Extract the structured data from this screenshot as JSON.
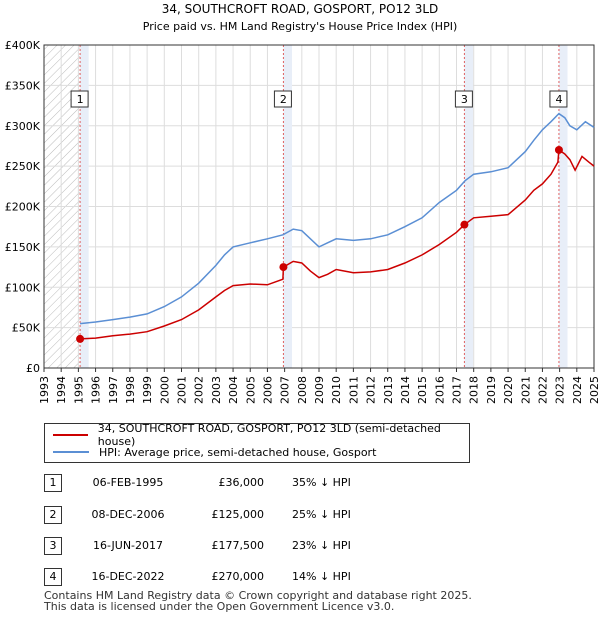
{
  "chart_data": {
    "type": "line",
    "title": "34, SOUTHCROFT ROAD, GOSPORT, PO12 3LD",
    "subtitle": "Price paid vs. HM Land Registry's House Price Index (HPI)",
    "xlabel": "",
    "ylabel": "",
    "xlim": [
      1993,
      2025
    ],
    "ylim": [
      0,
      400000
    ],
    "x_ticks": [
      "1993",
      "1994",
      "1995",
      "1996",
      "1997",
      "1998",
      "1999",
      "2000",
      "2001",
      "2002",
      "2003",
      "2004",
      "2005",
      "2006",
      "2007",
      "2008",
      "2009",
      "2010",
      "2011",
      "2012",
      "2013",
      "2014",
      "2015",
      "2016",
      "2017",
      "2018",
      "2019",
      "2020",
      "2021",
      "2022",
      "2023",
      "2024",
      "2025"
    ],
    "y_ticks": [
      {
        "value": 0,
        "label": "£0"
      },
      {
        "value": 50000,
        "label": "£50K"
      },
      {
        "value": 100000,
        "label": "£100K"
      },
      {
        "value": 150000,
        "label": "£150K"
      },
      {
        "value": 200000,
        "label": "£200K"
      },
      {
        "value": 250000,
        "label": "£250K"
      },
      {
        "value": 300000,
        "label": "£300K"
      },
      {
        "value": 350000,
        "label": "£350K"
      },
      {
        "value": 400000,
        "label": "£400K"
      }
    ],
    "grid": true,
    "series": [
      {
        "name": "34, SOUTHCROFT ROAD, GOSPORT, PO12 3LD (semi-detached house)",
        "color": "#cc0000",
        "points": [
          [
            1995.1,
            36000
          ],
          [
            1996.0,
            37000
          ],
          [
            1997.0,
            40000
          ],
          [
            1998.0,
            42000
          ],
          [
            1999.0,
            45000
          ],
          [
            2000.0,
            52000
          ],
          [
            2001.0,
            60000
          ],
          [
            2002.0,
            72000
          ],
          [
            2003.0,
            88000
          ],
          [
            2003.5,
            96000
          ],
          [
            2004.0,
            102000
          ],
          [
            2005.0,
            104000
          ],
          [
            2006.0,
            103000
          ],
          [
            2006.9,
            110000
          ],
          [
            2006.93,
            125000
          ],
          [
            2007.5,
            132000
          ],
          [
            2008.0,
            130000
          ],
          [
            2008.5,
            120000
          ],
          [
            2009.0,
            112000
          ],
          [
            2009.5,
            116000
          ],
          [
            2010.0,
            122000
          ],
          [
            2010.5,
            120000
          ],
          [
            2011.0,
            118000
          ],
          [
            2012.0,
            119000
          ],
          [
            2013.0,
            122000
          ],
          [
            2014.0,
            130000
          ],
          [
            2015.0,
            140000
          ],
          [
            2016.0,
            153000
          ],
          [
            2017.0,
            168000
          ],
          [
            2017.46,
            177500
          ],
          [
            2018.0,
            186000
          ],
          [
            2019.0,
            188000
          ],
          [
            2020.0,
            190000
          ],
          [
            2021.0,
            208000
          ],
          [
            2021.5,
            220000
          ],
          [
            2022.0,
            228000
          ],
          [
            2022.5,
            240000
          ],
          [
            2022.9,
            255000
          ],
          [
            2022.96,
            270000
          ],
          [
            2023.3,
            265000
          ],
          [
            2023.6,
            258000
          ],
          [
            2023.9,
            245000
          ],
          [
            2024.3,
            262000
          ],
          [
            2024.7,
            255000
          ],
          [
            2025.0,
            250000
          ]
        ]
      },
      {
        "name": "HPI: Average price, semi-detached house, Gosport",
        "color": "#5b8fd4",
        "points": [
          [
            1995.1,
            55000
          ],
          [
            1996.0,
            57000
          ],
          [
            1997.0,
            60000
          ],
          [
            1998.0,
            63000
          ],
          [
            1999.0,
            67000
          ],
          [
            2000.0,
            76000
          ],
          [
            2001.0,
            88000
          ],
          [
            2002.0,
            105000
          ],
          [
            2003.0,
            127000
          ],
          [
            2003.5,
            140000
          ],
          [
            2004.0,
            150000
          ],
          [
            2005.0,
            155000
          ],
          [
            2006.0,
            160000
          ],
          [
            2006.9,
            165000
          ],
          [
            2007.5,
            172000
          ],
          [
            2008.0,
            170000
          ],
          [
            2008.5,
            160000
          ],
          [
            2009.0,
            150000
          ],
          [
            2009.5,
            155000
          ],
          [
            2010.0,
            160000
          ],
          [
            2011.0,
            158000
          ],
          [
            2012.0,
            160000
          ],
          [
            2013.0,
            165000
          ],
          [
            2014.0,
            175000
          ],
          [
            2015.0,
            186000
          ],
          [
            2016.0,
            205000
          ],
          [
            2017.0,
            220000
          ],
          [
            2017.5,
            232000
          ],
          [
            2018.0,
            240000
          ],
          [
            2019.0,
            243000
          ],
          [
            2020.0,
            248000
          ],
          [
            2021.0,
            268000
          ],
          [
            2021.5,
            282000
          ],
          [
            2022.0,
            295000
          ],
          [
            2022.5,
            305000
          ],
          [
            2022.96,
            315000
          ],
          [
            2023.3,
            310000
          ],
          [
            2023.6,
            300000
          ],
          [
            2024.0,
            295000
          ],
          [
            2024.5,
            305000
          ],
          [
            2025.0,
            298000
          ]
        ]
      }
    ],
    "sales": [
      {
        "num": "1",
        "year": 1995.1,
        "price": 36000,
        "date": "06-FEB-1995",
        "price_label": "£36,000",
        "hpi_label": "35% ↓ HPI"
      },
      {
        "num": "2",
        "year": 2006.93,
        "price": 125000,
        "date": "08-DEC-2006",
        "price_label": "£125,000",
        "hpi_label": "25% ↓ HPI"
      },
      {
        "num": "3",
        "year": 2017.46,
        "price": 177500,
        "date": "16-JUN-2017",
        "price_label": "£177,500",
        "hpi_label": "23% ↓ HPI"
      },
      {
        "num": "4",
        "year": 2022.96,
        "price": 270000,
        "date": "16-DEC-2022",
        "price_label": "£270,000",
        "hpi_label": "14% ↓ HPI"
      }
    ],
    "hatch_before": 1995.1,
    "hatch_after": 2025
  },
  "legend": {
    "property_label": "34, SOUTHCROFT ROAD, GOSPORT, PO12 3LD (semi-detached house)",
    "hpi_label": "HPI: Average price, semi-detached house, Gosport"
  },
  "footer": {
    "line1": "Contains HM Land Registry data © Crown copyright and database right 2025.",
    "line2": "This data is licensed under the Open Government Licence v3.0."
  },
  "colors": {
    "property": "#cc0000",
    "hpi": "#5b8fd4",
    "sale_band": "#e8eef8",
    "grid": "#dddddd"
  }
}
